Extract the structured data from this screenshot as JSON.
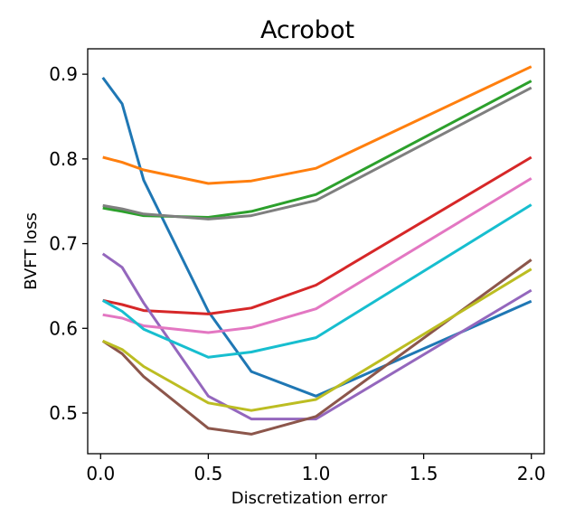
{
  "chart_data": {
    "type": "line",
    "title": "Acrobot",
    "xlabel": "Discretization error",
    "ylabel": "BVFT loss",
    "xlim": [
      -0.06,
      2.06
    ],
    "ylim": [
      0.452,
      0.93
    ],
    "xticks": [
      0.0,
      0.5,
      1.0,
      1.5,
      2.0
    ],
    "xtick_labels": [
      "0.0",
      "0.5",
      "1.0",
      "1.5",
      "2.0"
    ],
    "yticks": [
      0.5,
      0.6,
      0.7,
      0.8,
      0.9
    ],
    "ytick_labels": [
      "0.5",
      "0.6",
      "0.7",
      "0.8",
      "0.9"
    ],
    "grid": false,
    "legend": "none",
    "x": [
      0.01,
      0.1,
      0.2,
      0.5,
      0.7,
      1.0,
      2.0
    ],
    "series": [
      {
        "color": "#1f77b4",
        "values": [
          0.896,
          0.865,
          0.775,
          0.62,
          0.549,
          0.52,
          0.632
        ]
      },
      {
        "color": "#ff7f0e",
        "values": [
          0.802,
          0.796,
          0.787,
          0.771,
          0.774,
          0.789,
          0.909
        ]
      },
      {
        "color": "#2ca02c",
        "values": [
          0.742,
          0.738,
          0.733,
          0.731,
          0.738,
          0.758,
          0.892
        ]
      },
      {
        "color": "#d62728",
        "values": [
          0.633,
          0.628,
          0.621,
          0.617,
          0.624,
          0.651,
          0.802
        ]
      },
      {
        "color": "#9467bd",
        "values": [
          0.688,
          0.672,
          0.63,
          0.52,
          0.493,
          0.493,
          0.645
        ]
      },
      {
        "color": "#8c564b",
        "values": [
          0.585,
          0.57,
          0.543,
          0.482,
          0.475,
          0.496,
          0.681
        ]
      },
      {
        "color": "#e377c2",
        "values": [
          0.616,
          0.612,
          0.603,
          0.595,
          0.601,
          0.623,
          0.777
        ]
      },
      {
        "color": "#7f7f7f",
        "values": [
          0.745,
          0.741,
          0.735,
          0.729,
          0.733,
          0.751,
          0.884
        ]
      },
      {
        "color": "#bcbd22",
        "values": [
          0.585,
          0.575,
          0.555,
          0.512,
          0.503,
          0.516,
          0.67
        ]
      },
      {
        "color": "#17becf",
        "values": [
          0.633,
          0.62,
          0.599,
          0.566,
          0.572,
          0.589,
          0.746
        ]
      }
    ]
  }
}
